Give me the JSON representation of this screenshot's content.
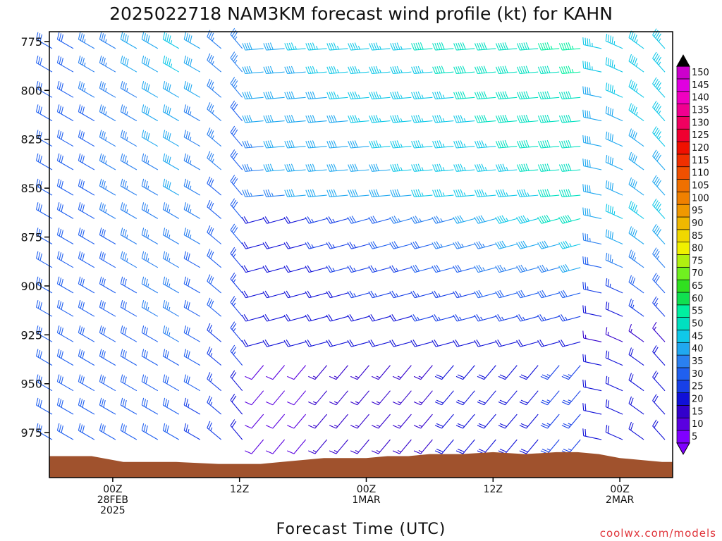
{
  "chart_data": {
    "type": "wind-barb-time-height",
    "title": "2025022718 NAM3KM forecast wind profile (kt) for KAHN",
    "xlabel": "Forecast Time (UTC)",
    "ylabel": "",
    "x_ticks": [
      {
        "time_hours": 6,
        "lines": [
          "00Z",
          "28FEB",
          "2025"
        ]
      },
      {
        "time_hours": 18,
        "lines": [
          "12Z"
        ]
      },
      {
        "time_hours": 30,
        "lines": [
          "00Z",
          "1MAR"
        ]
      },
      {
        "time_hours": 42,
        "lines": [
          "12Z"
        ]
      },
      {
        "time_hours": 54,
        "lines": [
          "00Z",
          "2MAR"
        ]
      }
    ],
    "x_range_hours": [
      0,
      59
    ],
    "y_ticks": [
      775,
      800,
      825,
      850,
      875,
      900,
      925,
      950,
      975
    ],
    "y_range_hpa": [
      770,
      998
    ],
    "barb_levels_hpa": [
      775,
      787,
      800,
      812,
      825,
      837,
      850,
      862,
      875,
      887,
      900,
      912,
      925,
      937,
      950,
      962,
      975
    ],
    "barb_times_hours": [
      0,
      2,
      4,
      6,
      8,
      10,
      12,
      14,
      16,
      18,
      20,
      22,
      24,
      26,
      28,
      30,
      32,
      34,
      36,
      38,
      40,
      42,
      44,
      46,
      48,
      50,
      52,
      54,
      56,
      58
    ],
    "surface_pressure_hpa": [
      [
        0,
        987
      ],
      [
        4,
        987
      ],
      [
        5,
        988
      ],
      [
        6,
        989
      ],
      [
        7,
        990
      ],
      [
        8,
        990
      ],
      [
        12,
        990
      ],
      [
        16,
        991
      ],
      [
        20,
        991
      ],
      [
        22,
        990
      ],
      [
        24,
        989
      ],
      [
        26,
        988
      ],
      [
        28,
        988
      ],
      [
        30,
        988
      ],
      [
        32,
        987
      ],
      [
        34,
        987
      ],
      [
        36,
        986
      ],
      [
        39,
        986
      ],
      [
        42,
        985
      ],
      [
        45,
        986
      ],
      [
        48,
        985
      ],
      [
        50,
        985
      ],
      [
        52,
        986
      ],
      [
        54,
        988
      ],
      [
        56,
        989
      ],
      [
        58,
        990
      ],
      [
        59,
        990
      ]
    ],
    "colorbar": {
      "labels": [
        5,
        10,
        15,
        20,
        25,
        30,
        35,
        40,
        45,
        50,
        55,
        60,
        65,
        70,
        75,
        80,
        85,
        90,
        95,
        100,
        105,
        110,
        115,
        120,
        125,
        130,
        135,
        140,
        145,
        150
      ],
      "colors": [
        "#8000ff",
        "#5a00e0",
        "#3300cc",
        "#1010d8",
        "#1840e8",
        "#2060f0",
        "#2a80f0",
        "#20a8f0",
        "#10c8e8",
        "#00e0c0",
        "#00f0a0",
        "#10e050",
        "#30e020",
        "#70f020",
        "#b0f010",
        "#f0f000",
        "#f0d800",
        "#f0b800",
        "#f09800",
        "#f08000",
        "#f07000",
        "#f05000",
        "#f03000",
        "#f01000",
        "#f00030",
        "#f00060",
        "#f00090",
        "#f000c0",
        "#e000e0",
        "#cc00cc"
      ]
    },
    "surface_color": "#a0522d"
  },
  "credit": "coolwx.com/models"
}
